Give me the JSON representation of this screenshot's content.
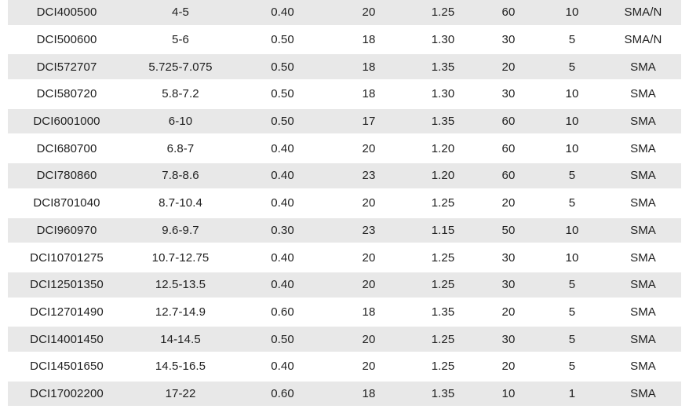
{
  "table": {
    "rows": [
      [
        "DCI400500",
        "4-5",
        "0.40",
        "20",
        "1.25",
        "60",
        "10",
        "SMA/N"
      ],
      [
        "DCI500600",
        "5-6",
        "0.50",
        "18",
        "1.30",
        "30",
        "5",
        "SMA/N"
      ],
      [
        "DCI572707",
        "5.725-7.075",
        "0.50",
        "18",
        "1.35",
        "20",
        "5",
        "SMA"
      ],
      [
        "DCI580720",
        "5.8-7.2",
        "0.50",
        "18",
        "1.30",
        "30",
        "10",
        "SMA"
      ],
      [
        "DCI6001000",
        "6-10",
        "0.50",
        "17",
        "1.35",
        "60",
        "10",
        "SMA"
      ],
      [
        "DCI680700",
        "6.8-7",
        "0.40",
        "20",
        "1.20",
        "60",
        "10",
        "SMA"
      ],
      [
        "DCI780860",
        "7.8-8.6",
        "0.40",
        "23",
        "1.20",
        "60",
        "5",
        "SMA"
      ],
      [
        "DCI8701040",
        "8.7-10.4",
        "0.40",
        "20",
        "1.25",
        "20",
        "5",
        "SMA"
      ],
      [
        "DCI960970",
        "9.6-9.7",
        "0.30",
        "23",
        "1.15",
        "50",
        "10",
        "SMA"
      ],
      [
        "DCI10701275",
        "10.7-12.75",
        "0.40",
        "20",
        "1.25",
        "30",
        "10",
        "SMA"
      ],
      [
        "DCI12501350",
        "12.5-13.5",
        "0.40",
        "20",
        "1.25",
        "30",
        "5",
        "SMA"
      ],
      [
        "DCI12701490",
        "12.7-14.9",
        "0.60",
        "18",
        "1.35",
        "20",
        "5",
        "SMA"
      ],
      [
        "DCI14001450",
        "14-14.5",
        "0.50",
        "20",
        "1.25",
        "30",
        "5",
        "SMA"
      ],
      [
        "DCI14501650",
        "14.5-16.5",
        "0.40",
        "20",
        "1.25",
        "20",
        "5",
        "SMA"
      ],
      [
        "DCI17002200",
        "17-22",
        "0.60",
        "18",
        "1.35",
        "10",
        "1",
        "SMA"
      ]
    ]
  },
  "colors": {
    "row_alt_background": "#e8e8e8",
    "row_background": "#ffffff",
    "text": "#1f1f1f"
  }
}
